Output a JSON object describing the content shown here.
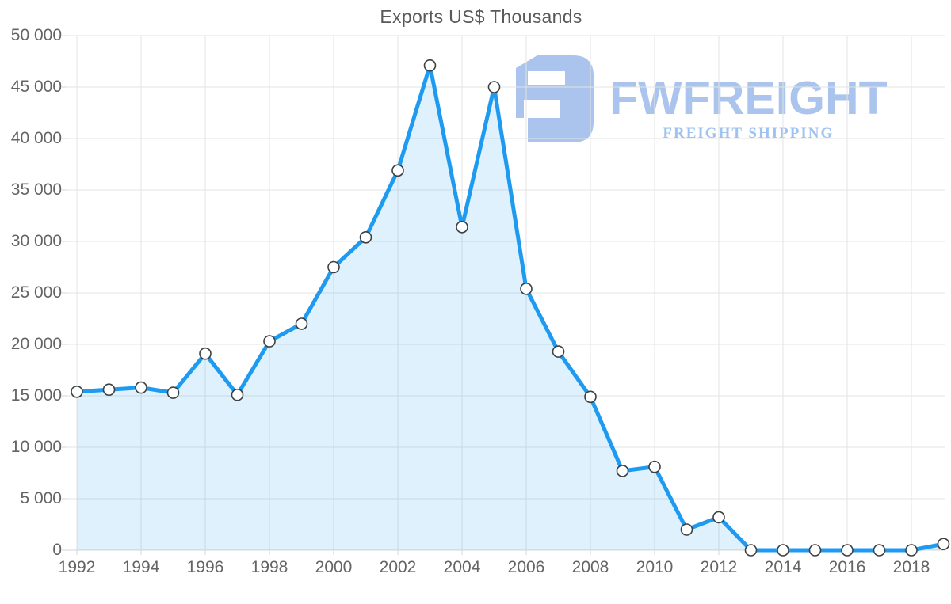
{
  "chart_data": {
    "type": "area",
    "title": "Exports US$ Thousands",
    "xlabel": "",
    "ylabel": "",
    "x": [
      1992,
      1993,
      1994,
      1995,
      1996,
      1997,
      1998,
      1999,
      2000,
      2001,
      2002,
      2003,
      2004,
      2005,
      2006,
      2007,
      2008,
      2009,
      2010,
      2011,
      2012,
      2013,
      2014,
      2015,
      2016,
      2017,
      2018,
      2019
    ],
    "values": [
      15400,
      15600,
      15800,
      15300,
      19100,
      15100,
      20300,
      22000,
      27500,
      30400,
      36900,
      47100,
      31400,
      45000,
      25400,
      19300,
      14900,
      7700,
      8100,
      2000,
      3200,
      0,
      0,
      0,
      0,
      0,
      0,
      600
    ],
    "ylim": [
      0,
      50000
    ],
    "y_ticks": [
      0,
      5000,
      10000,
      15000,
      20000,
      25000,
      30000,
      35000,
      40000,
      45000,
      50000
    ],
    "y_tick_labels": [
      "0",
      "5 000",
      "10 000",
      "15 000",
      "20 000",
      "25 000",
      "30 000",
      "35 000",
      "40 000",
      "45 000",
      "50 000"
    ],
    "x_tick_years": [
      1992,
      1994,
      1996,
      1998,
      2000,
      2002,
      2004,
      2006,
      2008,
      2010,
      2012,
      2014,
      2016,
      2018
    ],
    "x_tick_labels": [
      "1992",
      "1994",
      "1996",
      "1998",
      "2000",
      "2002",
      "2004",
      "2006",
      "2008",
      "2010",
      "2012",
      "2014",
      "2016",
      "2018"
    ],
    "grid": true,
    "legend": "none",
    "markers": true,
    "colors": {
      "line": "#1e9bf0",
      "area_fill": "rgba(30,155,240,0.14)",
      "marker_fill": "#ffffff",
      "marker_stroke": "#3c4043",
      "grid": "#e3e3e3",
      "baseline": "#d6d6d6",
      "axis_text": "#646464",
      "title_text": "#58595b",
      "logo": "#aac4ee",
      "tagline": "#9fc2f0"
    }
  },
  "logo": {
    "brand": "FWFREIGHT",
    "tagline": "FREIGHT SHIPPING"
  }
}
